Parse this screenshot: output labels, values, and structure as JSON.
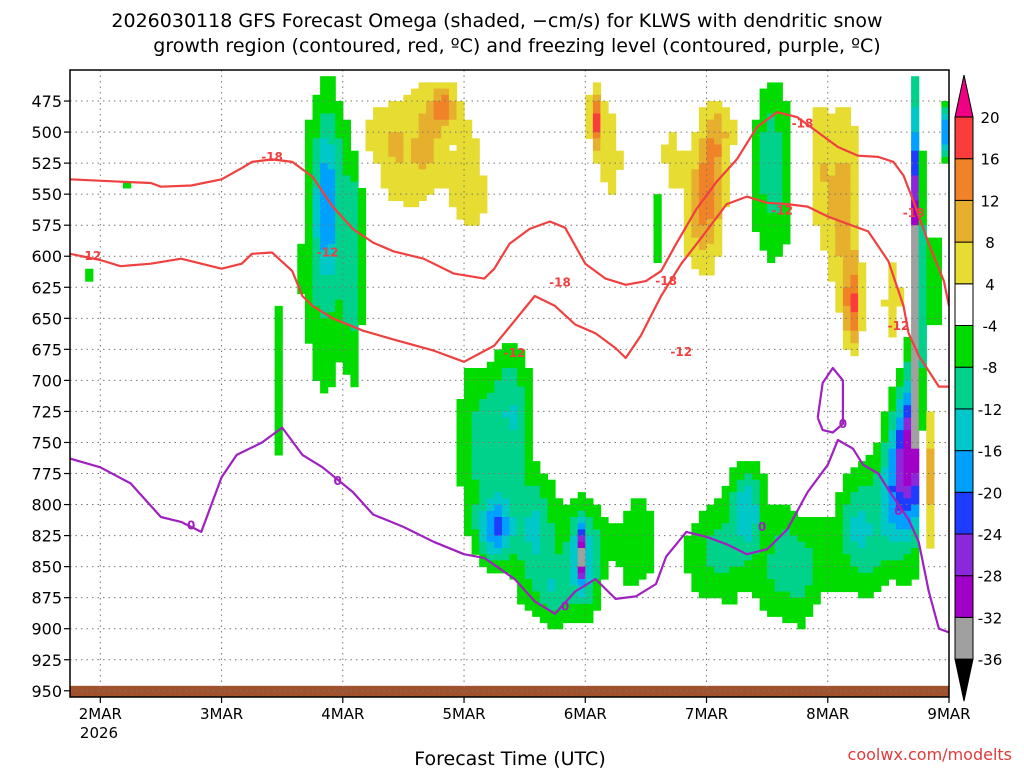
{
  "title_line1": "2026030118 GFS Forecast Omega (shaded, −cm/s) for KLWS with dendritic snow",
  "title_line2": "growth region (contoured, red, ºC) and freezing level (contoured, purple, ºC)",
  "xlabel": "Forecast Time (UTC)",
  "credit": "coolwx.com/modelts",
  "year_label": "2026",
  "colors": {
    "dgz": "#f04040",
    "freeze": "#a020c0",
    "ground": "#a0522d",
    "grid": "#777777"
  },
  "chart_data": {
    "type": "heatmap",
    "title": "2026030118 GFS Forecast Omega (shaded, −cm/s) for KLWS with dendritic snow growth region (contoured, red, ºC) and freezing level (contoured, purple, ºC)",
    "xlabel": "Forecast Time (UTC)",
    "ylabel": "",
    "x_ticks": [
      "2MAR",
      "3MAR",
      "4MAR",
      "5MAR",
      "6MAR",
      "7MAR",
      "8MAR",
      "9MAR"
    ],
    "x_unit": "hours since 2026-03-01 18 UTC",
    "x_range": [
      0,
      174
    ],
    "x_tick_hours": [
      6,
      30,
      54,
      78,
      102,
      126,
      150,
      174
    ],
    "y_ticks": [
      475,
      500,
      525,
      550,
      575,
      600,
      625,
      650,
      675,
      700,
      725,
      750,
      775,
      800,
      825,
      850,
      875,
      900,
      925,
      950
    ],
    "y_range": [
      450,
      955
    ],
    "colorbar": {
      "levels": [
        -36,
        -32,
        -28,
        -24,
        -20,
        -16,
        -12,
        -8,
        -4,
        4,
        8,
        12,
        16,
        20
      ],
      "colors": [
        "#000000",
        "#a0a0a0",
        "#a000c8",
        "#8c28dc",
        "#1e3cff",
        "#00a0ff",
        "#00c8c8",
        "#00d28c",
        "#00dc00",
        "#ffffff",
        "#e6dc32",
        "#e6af2d",
        "#f08228",
        "#fa3c3c",
        "#f00082"
      ]
    },
    "omega_blobs": [
      {
        "x": 4,
        "p": 615,
        "w": 1.2,
        "h": 16,
        "v": -6
      },
      {
        "x": 12,
        "p": 545,
        "w": 1.5,
        "h": 80,
        "v": -6
      },
      {
        "x": 9,
        "p": 470,
        "w": 1.2,
        "h": 30,
        "v": -6
      },
      {
        "x": 30,
        "p": 900,
        "w": 1.5,
        "h": 40,
        "v": 5
      },
      {
        "x": 41,
        "p": 700,
        "w": 2,
        "h": 170,
        "v": -7
      },
      {
        "x": 50,
        "p": 600,
        "w": 6,
        "h": 300,
        "v": -8
      },
      {
        "x": 51,
        "p": 550,
        "w": 3,
        "h": 160,
        "v": -13
      },
      {
        "x": 56,
        "p": 600,
        "w": 2.5,
        "h": 220,
        "v": -10
      },
      {
        "x": 60,
        "p": 500,
        "w": 4,
        "h": 60,
        "v": 5
      },
      {
        "x": 64,
        "p": 520,
        "w": 4,
        "h": 120,
        "v": 6
      },
      {
        "x": 70,
        "p": 510,
        "w": 5,
        "h": 120,
        "v": 9
      },
      {
        "x": 74,
        "p": 480,
        "w": 3,
        "h": 40,
        "v": 12
      },
      {
        "x": 79,
        "p": 540,
        "w": 5,
        "h": 150,
        "v": 6
      },
      {
        "x": 82,
        "p": 750,
        "w": 7,
        "h": 160,
        "v": -10
      },
      {
        "x": 84,
        "p": 820,
        "w": 4,
        "h": 60,
        "v": -17
      },
      {
        "x": 88,
        "p": 720,
        "w": 4,
        "h": 120,
        "v": -9
      },
      {
        "x": 92,
        "p": 820,
        "w": 6,
        "h": 110,
        "v": -12
      },
      {
        "x": 96,
        "p": 870,
        "w": 6,
        "h": 70,
        "v": -9
      },
      {
        "x": 102,
        "p": 840,
        "w": 4,
        "h": 100,
        "v": -14
      },
      {
        "x": 101,
        "p": 840,
        "w": 1,
        "h": 50,
        "v": -22
      },
      {
        "x": 104,
        "p": 490,
        "w": 1.5,
        "h": 60,
        "v": 17
      },
      {
        "x": 107,
        "p": 520,
        "w": 3,
        "h": 100,
        "v": 7
      },
      {
        "x": 112,
        "p": 830,
        "w": 6,
        "h": 110,
        "v": -7
      },
      {
        "x": 116,
        "p": 560,
        "w": 2,
        "h": 140,
        "v": -7
      },
      {
        "x": 118,
        "p": 520,
        "w": 3,
        "h": 90,
        "v": 6
      },
      {
        "x": 124,
        "p": 560,
        "w": 4,
        "h": 140,
        "v": 8
      },
      {
        "x": 127,
        "p": 540,
        "w": 3,
        "h": 130,
        "v": 12
      },
      {
        "x": 130,
        "p": 500,
        "w": 4,
        "h": 60,
        "v": 6
      },
      {
        "x": 128,
        "p": 840,
        "w": 8,
        "h": 100,
        "v": -9
      },
      {
        "x": 134,
        "p": 800,
        "w": 4,
        "h": 80,
        "v": -13
      },
      {
        "x": 139,
        "p": 530,
        "w": 5,
        "h": 170,
        "v": -11
      },
      {
        "x": 143,
        "p": 850,
        "w": 8,
        "h": 110,
        "v": -11
      },
      {
        "x": 148,
        "p": 530,
        "w": 3,
        "h": 140,
        "v": 7
      },
      {
        "x": 153,
        "p": 560,
        "w": 4,
        "h": 200,
        "v": 10
      },
      {
        "x": 155,
        "p": 640,
        "w": 2,
        "h": 80,
        "v": 14
      },
      {
        "x": 157,
        "p": 820,
        "w": 6,
        "h": 120,
        "v": -13
      },
      {
        "x": 163,
        "p": 780,
        "w": 3,
        "h": 140,
        "v": -16
      },
      {
        "x": 163,
        "p": 640,
        "w": 3,
        "h": 120,
        "v": 6
      },
      {
        "x": 166,
        "p": 760,
        "w": 2.5,
        "h": 160,
        "v": -26
      },
      {
        "x": 167.5,
        "p": 620,
        "w": 1.2,
        "h": 320,
        "v": -38
      },
      {
        "x": 170,
        "p": 780,
        "w": 2,
        "h": 140,
        "v": 10
      },
      {
        "x": 173,
        "p": 500,
        "w": 1,
        "h": 50,
        "v": -20
      },
      {
        "x": 171,
        "p": 620,
        "w": 1.5,
        "h": 110,
        "v": -10
      }
    ],
    "series": [
      {
        "name": "-18",
        "kind": "dgz",
        "points": [
          [
            0,
            538
          ],
          [
            10,
            540
          ],
          [
            16,
            541
          ],
          [
            18,
            544
          ],
          [
            24,
            543
          ],
          [
            30,
            538
          ],
          [
            34,
            529
          ],
          [
            36,
            524
          ],
          [
            40,
            522
          ],
          [
            44,
            524
          ],
          [
            48,
            536
          ],
          [
            52,
            560
          ],
          [
            56,
            578
          ],
          [
            60,
            589
          ],
          [
            64,
            596
          ],
          [
            70,
            602
          ],
          [
            76,
            614
          ],
          [
            82,
            618
          ],
          [
            84,
            610
          ],
          [
            87,
            590
          ],
          [
            91,
            578
          ],
          [
            95,
            572
          ],
          [
            98,
            577
          ],
          [
            102,
            606
          ],
          [
            106,
            618
          ],
          [
            110,
            623
          ],
          [
            114,
            620
          ],
          [
            117,
            612
          ],
          [
            120,
            590
          ],
          [
            124,
            562
          ],
          [
            128,
            540
          ],
          [
            132,
            522
          ],
          [
            136,
            496
          ],
          [
            140,
            484
          ],
          [
            144,
            488
          ],
          [
            148,
            500
          ],
          [
            152,
            512
          ],
          [
            156,
            519
          ],
          [
            160,
            520
          ],
          [
            163,
            524
          ],
          [
            165,
            535
          ],
          [
            167,
            556
          ],
          [
            170,
            590
          ],
          [
            173,
            620
          ],
          [
            174,
            640
          ]
        ]
      },
      {
        "name": "-12",
        "kind": "dgz",
        "points": [
          [
            0,
            598
          ],
          [
            6,
            603
          ],
          [
            10,
            608
          ],
          [
            16,
            606
          ],
          [
            22,
            602
          ],
          [
            30,
            610
          ],
          [
            34,
            606
          ],
          [
            36,
            598
          ],
          [
            40,
            597
          ],
          [
            44,
            612
          ],
          [
            46,
            632
          ],
          [
            48,
            640
          ],
          [
            52,
            650
          ],
          [
            58,
            660
          ],
          [
            64,
            667
          ],
          [
            72,
            676
          ],
          [
            78,
            685
          ],
          [
            84,
            672
          ],
          [
            88,
            652
          ],
          [
            92,
            632
          ],
          [
            96,
            640
          ],
          [
            100,
            655
          ],
          [
            104,
            662
          ],
          [
            108,
            674
          ],
          [
            110,
            682
          ],
          [
            113,
            664
          ],
          [
            117,
            632
          ],
          [
            121,
            606
          ],
          [
            125,
            585
          ],
          [
            130,
            558
          ],
          [
            134,
            552
          ],
          [
            138,
            557
          ],
          [
            142,
            558
          ],
          [
            146,
            560
          ],
          [
            150,
            568
          ],
          [
            154,
            574
          ],
          [
            158,
            580
          ],
          [
            162,
            604
          ],
          [
            165,
            640
          ],
          [
            166,
            662
          ],
          [
            168,
            680
          ],
          [
            172,
            705
          ],
          [
            174,
            705
          ]
        ]
      },
      {
        "name": "0",
        "kind": "freeze",
        "points": [
          [
            0,
            763
          ],
          [
            6,
            770
          ],
          [
            12,
            783
          ],
          [
            18,
            810
          ],
          [
            22,
            814
          ],
          [
            26,
            822
          ],
          [
            28,
            800
          ],
          [
            30,
            778
          ],
          [
            33,
            760
          ],
          [
            38,
            750
          ],
          [
            42,
            738
          ],
          [
            46,
            760
          ],
          [
            50,
            770
          ],
          [
            56,
            790
          ],
          [
            60,
            808
          ],
          [
            66,
            818
          ],
          [
            72,
            830
          ],
          [
            78,
            840
          ],
          [
            82,
            843
          ],
          [
            88,
            860
          ],
          [
            92,
            878
          ],
          [
            96,
            888
          ],
          [
            100,
            870
          ],
          [
            104,
            860
          ],
          [
            108,
            876
          ],
          [
            112,
            874
          ],
          [
            116,
            864
          ],
          [
            118,
            842
          ],
          [
            122,
            822
          ],
          [
            126,
            826
          ],
          [
            130,
            832
          ],
          [
            134,
            840
          ],
          [
            138,
            836
          ],
          [
            142,
            820
          ],
          [
            146,
            790
          ],
          [
            150,
            768
          ],
          [
            152,
            748
          ],
          [
            155,
            755
          ],
          [
            157,
            768
          ],
          [
            160,
            775
          ],
          [
            162,
            788
          ],
          [
            164,
            800
          ],
          [
            166,
            812
          ],
          [
            168,
            830
          ],
          [
            170,
            870
          ],
          [
            172,
            900
          ],
          [
            174,
            903
          ]
        ]
      },
      {
        "name": "0",
        "kind": "freeze",
        "points": [
          [
            148,
            730
          ],
          [
            149,
            702
          ],
          [
            151,
            690
          ],
          [
            153,
            700
          ],
          [
            153,
            735
          ],
          [
            151,
            742
          ],
          [
            149,
            740
          ],
          [
            148,
            730
          ]
        ]
      }
    ],
    "contour_labels": [
      {
        "text": "-12",
        "kind": "dgz",
        "x": 4,
        "p": 600
      },
      {
        "text": "-18",
        "kind": "dgz",
        "x": 40,
        "p": 520
      },
      {
        "text": "-12",
        "kind": "dgz",
        "x": 51,
        "p": 597
      },
      {
        "text": "-12",
        "kind": "dgz",
        "x": 88,
        "p": 678
      },
      {
        "text": "-18",
        "kind": "dgz",
        "x": 97,
        "p": 621
      },
      {
        "text": "-18",
        "kind": "dgz",
        "x": 118,
        "p": 620
      },
      {
        "text": "-12",
        "kind": "dgz",
        "x": 121,
        "p": 677
      },
      {
        "text": "-12",
        "kind": "dgz",
        "x": 141,
        "p": 563
      },
      {
        "text": "-18",
        "kind": "dgz",
        "x": 145,
        "p": 493
      },
      {
        "text": "-18",
        "kind": "dgz",
        "x": 167,
        "p": 565
      },
      {
        "text": "-12",
        "kind": "dgz",
        "x": 164,
        "p": 656
      },
      {
        "text": "0",
        "kind": "freeze",
        "x": 24,
        "p": 817
      },
      {
        "text": "0",
        "kind": "freeze",
        "x": 53,
        "p": 781
      },
      {
        "text": "0",
        "kind": "freeze",
        "x": 98,
        "p": 882
      },
      {
        "text": "0",
        "kind": "freeze",
        "x": 137,
        "p": 818
      },
      {
        "text": "0",
        "kind": "freeze",
        "x": 153,
        "p": 735
      },
      {
        "text": "0",
        "kind": "freeze",
        "x": 164,
        "p": 805
      }
    ]
  }
}
